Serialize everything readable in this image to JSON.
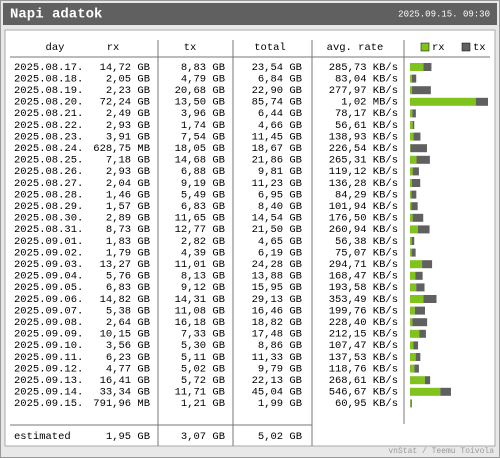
{
  "header": {
    "title": "Napi adatok",
    "timestamp": "2025.09.15. 09:30"
  },
  "columns": [
    "day",
    "rx",
    "tx",
    "total",
    "avg. rate"
  ],
  "legend": [
    "rx",
    "tx"
  ],
  "rows": [
    [
      "2025.08.17.",
      "14,72 GB",
      "8,83 GB",
      "23,54 GB",
      "285,73 KB/s"
    ],
    [
      "2025.08.18.",
      "2,05 GB",
      "4,79 GB",
      "6,84 GB",
      "83,04 KB/s"
    ],
    [
      "2025.08.19.",
      "2,23 GB",
      "20,68 GB",
      "22,90 GB",
      "277,97 KB/s"
    ],
    [
      "2025.08.20.",
      "72,24 GB",
      "13,50 GB",
      "85,74 GB",
      "1,02 MB/s"
    ],
    [
      "2025.08.21.",
      "2,49 GB",
      "3,96 GB",
      "6,44 GB",
      "78,17 KB/s"
    ],
    [
      "2025.08.22.",
      "2,93 GB",
      "1,74 GB",
      "4,66 GB",
      "56,61 KB/s"
    ],
    [
      "2025.08.23.",
      "3,91 GB",
      "7,54 GB",
      "11,45 GB",
      "138,93 KB/s"
    ],
    [
      "2025.08.24.",
      "628,75 MB",
      "18,05 GB",
      "18,67 GB",
      "226,54 KB/s"
    ],
    [
      "2025.08.25.",
      "7,18 GB",
      "14,68 GB",
      "21,86 GB",
      "265,31 KB/s"
    ],
    [
      "2025.08.26.",
      "2,93 GB",
      "6,88 GB",
      "9,81 GB",
      "119,12 KB/s"
    ],
    [
      "2025.08.27.",
      "2,04 GB",
      "9,19 GB",
      "11,23 GB",
      "136,28 KB/s"
    ],
    [
      "2025.08.28.",
      "1,46 GB",
      "5,49 GB",
      "6,95 GB",
      "84,29 KB/s"
    ],
    [
      "2025.08.29.",
      "1,57 GB",
      "6,83 GB",
      "8,40 GB",
      "101,94 KB/s"
    ],
    [
      "2025.08.30.",
      "2,89 GB",
      "11,65 GB",
      "14,54 GB",
      "176,50 KB/s"
    ],
    [
      "2025.08.31.",
      "8,73 GB",
      "12,77 GB",
      "21,50 GB",
      "260,94 KB/s"
    ],
    [
      "2025.09.01.",
      "1,83 GB",
      "2,82 GB",
      "4,65 GB",
      "56,38 KB/s"
    ],
    [
      "2025.09.02.",
      "1,79 GB",
      "4,39 GB",
      "6,19 GB",
      "75,07 KB/s"
    ],
    [
      "2025.09.03.",
      "13,27 GB",
      "11,01 GB",
      "24,28 GB",
      "294,71 KB/s"
    ],
    [
      "2025.09.04.",
      "5,76 GB",
      "8,13 GB",
      "13,88 GB",
      "168,47 KB/s"
    ],
    [
      "2025.09.05.",
      "6,83 GB",
      "9,12 GB",
      "15,95 GB",
      "193,58 KB/s"
    ],
    [
      "2025.09.06.",
      "14,82 GB",
      "14,31 GB",
      "29,13 GB",
      "353,49 KB/s"
    ],
    [
      "2025.09.07.",
      "5,38 GB",
      "11,08 GB",
      "16,46 GB",
      "199,76 KB/s"
    ],
    [
      "2025.09.08.",
      "2,64 GB",
      "16,18 GB",
      "18,82 GB",
      "228,40 KB/s"
    ],
    [
      "2025.09.09.",
      "10,15 GB",
      "7,33 GB",
      "17,48 GB",
      "212,15 KB/s"
    ],
    [
      "2025.09.10.",
      "3,56 GB",
      "5,30 GB",
      "8,86 GB",
      "107,47 KB/s"
    ],
    [
      "2025.09.11.",
      "6,23 GB",
      "5,11 GB",
      "11,33 GB",
      "137,53 KB/s"
    ],
    [
      "2025.09.12.",
      "4,77 GB",
      "5,02 GB",
      "9,79 GB",
      "118,76 KB/s"
    ],
    [
      "2025.09.13.",
      "16,41 GB",
      "5,72 GB",
      "22,13 GB",
      "268,61 KB/s"
    ],
    [
      "2025.09.14.",
      "33,34 GB",
      "11,71 GB",
      "45,04 GB",
      "546,67 KB/s"
    ],
    [
      "2025.09.15.",
      "791,96 MB",
      "1,21 GB",
      "1,99 GB",
      "60,95 KB/s"
    ]
  ],
  "bars": [
    {
      "rx": 14.72,
      "tx": 8.83
    },
    {
      "rx": 2.05,
      "tx": 4.79
    },
    {
      "rx": 2.23,
      "tx": 20.68
    },
    {
      "rx": 72.24,
      "tx": 13.5
    },
    {
      "rx": 2.49,
      "tx": 3.96
    },
    {
      "rx": 2.93,
      "tx": 1.74
    },
    {
      "rx": 3.91,
      "tx": 7.54
    },
    {
      "rx": 0.61,
      "tx": 18.05
    },
    {
      "rx": 7.18,
      "tx": 14.68
    },
    {
      "rx": 2.93,
      "tx": 6.88
    },
    {
      "rx": 2.04,
      "tx": 9.19
    },
    {
      "rx": 1.46,
      "tx": 5.49
    },
    {
      "rx": 1.57,
      "tx": 6.83
    },
    {
      "rx": 2.89,
      "tx": 11.65
    },
    {
      "rx": 8.73,
      "tx": 12.77
    },
    {
      "rx": 1.83,
      "tx": 2.82
    },
    {
      "rx": 1.79,
      "tx": 4.39
    },
    {
      "rx": 13.27,
      "tx": 11.01
    },
    {
      "rx": 5.76,
      "tx": 8.13
    },
    {
      "rx": 6.83,
      "tx": 9.12
    },
    {
      "rx": 14.82,
      "tx": 14.31
    },
    {
      "rx": 5.38,
      "tx": 11.08
    },
    {
      "rx": 2.64,
      "tx": 16.18
    },
    {
      "rx": 10.15,
      "tx": 7.33
    },
    {
      "rx": 3.56,
      "tx": 5.3
    },
    {
      "rx": 6.23,
      "tx": 5.11
    },
    {
      "rx": 4.77,
      "tx": 5.02
    },
    {
      "rx": 16.41,
      "tx": 5.72
    },
    {
      "rx": 33.34,
      "tx": 11.71
    },
    {
      "rx": 0.77,
      "tx": 1.21
    }
  ],
  "estimated": [
    "estimated",
    "1,95 GB",
    "3,07 GB",
    "5,02 GB"
  ],
  "footer": "vnStat / Teemu Toivola"
}
